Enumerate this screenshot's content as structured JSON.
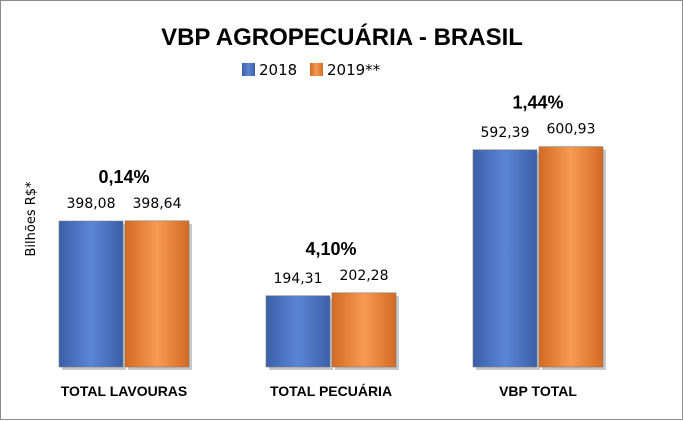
{
  "chart_data": {
    "type": "bar",
    "title": "VBP AGROPECUÁRIA - BRASIL",
    "ylabel": "Bilhões R$*",
    "xlabel": "",
    "categories": [
      "TOTAL LAVOURAS",
      "TOTAL PECUÁRIA",
      "VBP TOTAL"
    ],
    "series": [
      {
        "name": "2018",
        "values": [
          398.08,
          194.31,
          592.39
        ],
        "labels": [
          "398,08",
          "194,31",
          "592,39"
        ],
        "color": "#4472c4"
      },
      {
        "name": "2019**",
        "values": [
          398.64,
          202.28,
          600.93
        ],
        "labels": [
          "398,64",
          "202,28",
          "600,93"
        ],
        "color": "#ed7d31"
      }
    ],
    "growth_labels": [
      "0,14%",
      "4,10%",
      "1,44%"
    ],
    "ylim": [
      0,
      720
    ],
    "legend_position": "top-center",
    "grid": false
  }
}
